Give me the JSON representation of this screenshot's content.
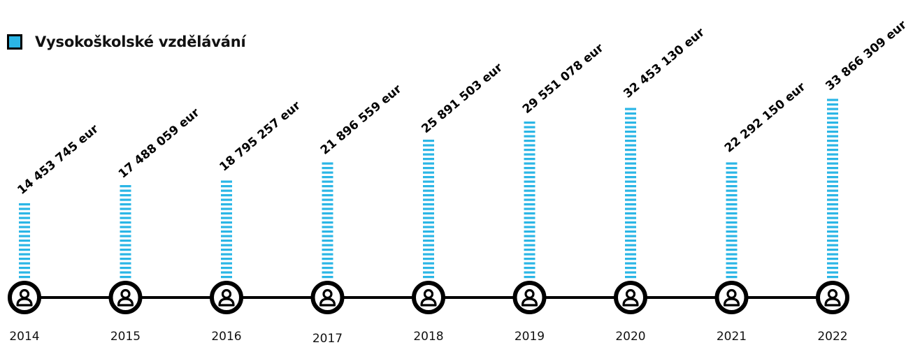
{
  "chart_data": {
    "type": "bar",
    "legend": "Vysokoškolské vzdělávání",
    "categories": [
      "2014",
      "2015",
      "2016",
      "2017",
      "2018",
      "2019",
      "2020",
      "2021",
      "2022"
    ],
    "values": [
      14453745,
      17488059,
      18795257,
      21896559,
      25891503,
      29551078,
      32453130,
      22292150,
      33866309
    ],
    "data_labels": [
      "14 453 745 eur",
      "17 488 059 eur",
      "18 795 257 eur",
      "21 896 559 eur",
      "25 891 503 eur",
      "29 551 078 eur",
      "32 453 130 eur",
      "22 292 150 eur",
      "33 866 309 eur"
    ],
    "ylim": [
      0,
      33866309
    ],
    "colors": {
      "bar": "#2bb6e6",
      "axis": "#000000"
    },
    "icon": "person-circle-icon"
  }
}
